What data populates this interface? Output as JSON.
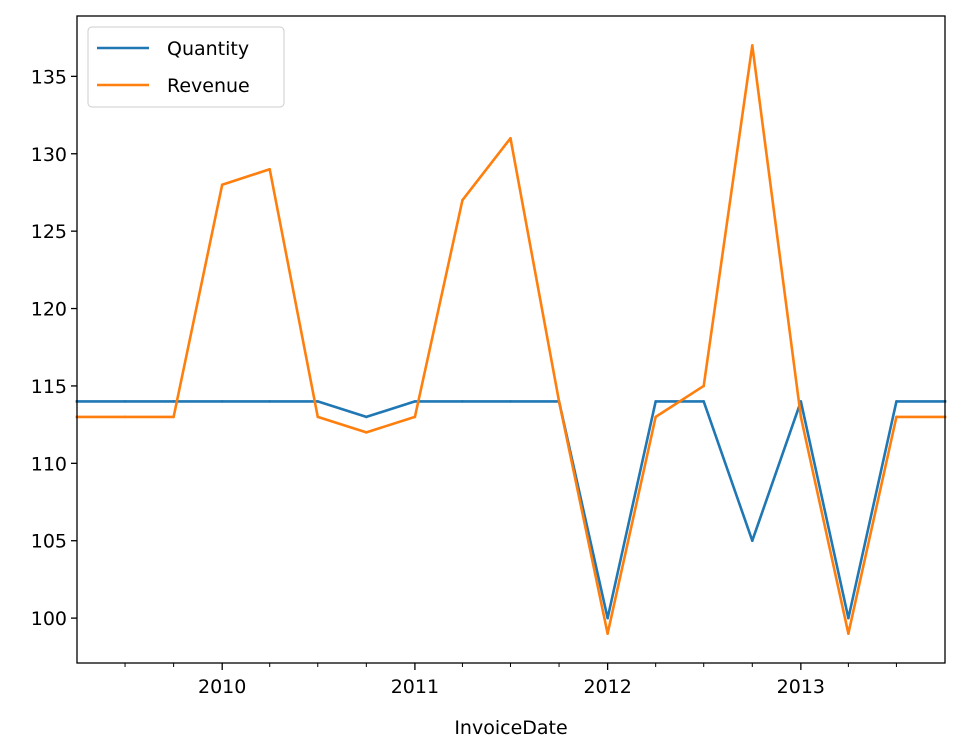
{
  "chart_data": {
    "type": "line",
    "title": "",
    "xlabel": "InvoiceDate",
    "ylabel": "",
    "x": [
      "2009-04-01",
      "2009-07-01",
      "2009-10-01",
      "2010-01-01",
      "2010-04-01",
      "2010-07-01",
      "2010-10-01",
      "2011-01-01",
      "2011-04-01",
      "2011-07-01",
      "2011-10-01",
      "2012-01-01",
      "2012-04-01",
      "2012-07-01",
      "2012-10-01",
      "2013-01-01",
      "2013-04-01",
      "2013-07-01",
      "2013-10-01"
    ],
    "xlim": [
      "2009-04-01",
      "2013-10-01"
    ],
    "x_major_ticks": [
      {
        "date": "2010-01-01",
        "label": "2010"
      },
      {
        "date": "2011-01-01",
        "label": "2011"
      },
      {
        "date": "2012-01-01",
        "label": "2012"
      },
      {
        "date": "2013-01-01",
        "label": "2013"
      }
    ],
    "x_minor_ticks": [
      "2009-07-01",
      "2009-10-01",
      "2010-04-01",
      "2010-07-01",
      "2010-10-01",
      "2011-04-01",
      "2011-07-01",
      "2011-10-01",
      "2012-04-01",
      "2012-07-01",
      "2012-10-01",
      "2013-04-01",
      "2013-07-01"
    ],
    "series": [
      {
        "name": "Quantity",
        "color": "#1f77b4",
        "values": [
          114,
          114,
          114,
          114,
          114,
          114,
          113,
          114,
          114,
          114,
          114,
          100,
          114,
          114,
          105,
          114,
          100,
          114,
          114
        ]
      },
      {
        "name": "Revenue",
        "color": "#ff7f0e",
        "values": [
          113,
          113,
          113,
          128,
          129,
          113,
          112,
          113,
          127,
          131,
          114,
          99,
          113,
          115,
          137,
          113,
          99,
          113,
          113
        ]
      }
    ],
    "ylim": [
      97.1,
      138.9
    ],
    "y_ticks": [
      100,
      105,
      110,
      115,
      120,
      125,
      130,
      135
    ],
    "grid": false,
    "legend": "upper left"
  }
}
